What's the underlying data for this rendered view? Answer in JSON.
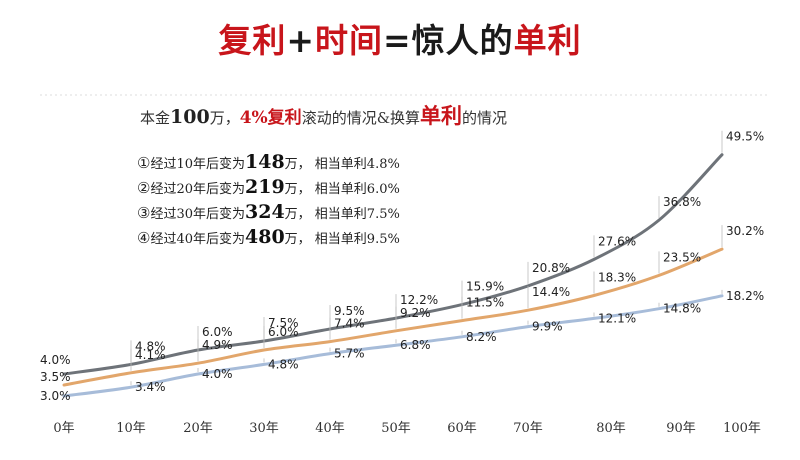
{
  "header": {
    "title_part1": "复利",
    "title_plus": "+",
    "title_part2": "时间",
    "title_eq": "=",
    "title_part3": "惊人的",
    "title_part4": "单利"
  },
  "subtitle": {
    "p1": "本金",
    "p2": "100",
    "p3": "万，",
    "p4": "4%复利",
    "p5": "滚动的情况&换算",
    "p6": "单利",
    "p7": "的情况"
  },
  "notes": [
    {
      "marker": "①",
      "pre": "经过10年后变为",
      "num": "148",
      "post": "万， 相当单利4.8%"
    },
    {
      "marker": "②",
      "pre": "经过20年后变为",
      "num": "219",
      "post": "万， 相当单利6.0%"
    },
    {
      "marker": "③",
      "pre": "经过30年后变为",
      "num": "324",
      "post": "万， 相当单利7.5%"
    },
    {
      "marker": "④",
      "pre": "经过40年后变为",
      "num": "480",
      "post": "万， 相当单利9.5%"
    }
  ],
  "chart_data": {
    "type": "line",
    "categories": [
      "0年",
      "10年",
      "20年",
      "30年",
      "40年",
      "50年",
      "60年",
      "70年",
      "80年",
      "90年",
      "100年"
    ],
    "series": [
      {
        "color": "#6e7379",
        "values": [
          4.0,
          4.8,
          6.0,
          7.5,
          9.5,
          12.2,
          15.9,
          20.8,
          27.6,
          36.8,
          49.5
        ],
        "labels": [
          "4.0%",
          "4.8%",
          "6.0%",
          "7.5%",
          "9.5%",
          "12.2%",
          "15.9%",
          "20.8%",
          "27.6%",
          "36.8%",
          "49.5%"
        ]
      },
      {
        "color": "#e2a66b",
        "values": [
          3.5,
          4.1,
          4.9,
          6.0,
          7.4,
          9.2,
          11.5,
          14.4,
          18.3,
          23.5,
          30.2
        ],
        "labels": [
          "3.5%",
          "4.1%",
          "4.9%",
          "6.0%",
          "7.4%",
          "9.2%",
          "11.5%",
          "14.4%",
          "18.3%",
          "23.5%",
          "30.2%"
        ]
      },
      {
        "color": "#a7bcd9",
        "values": [
          3.0,
          3.4,
          4.0,
          4.8,
          5.7,
          6.8,
          8.2,
          9.9,
          12.1,
          14.8,
          18.2
        ],
        "labels": [
          "3.0%",
          "3.4%",
          "4.0%",
          "4.8%",
          "5.7%",
          "6.8%",
          "8.2%",
          "9.9%",
          "12.1%",
          "14.8%",
          "18.2%"
        ]
      }
    ],
    "xlabel": "",
    "ylabel": "",
    "legend": "none",
    "grid": false
  }
}
